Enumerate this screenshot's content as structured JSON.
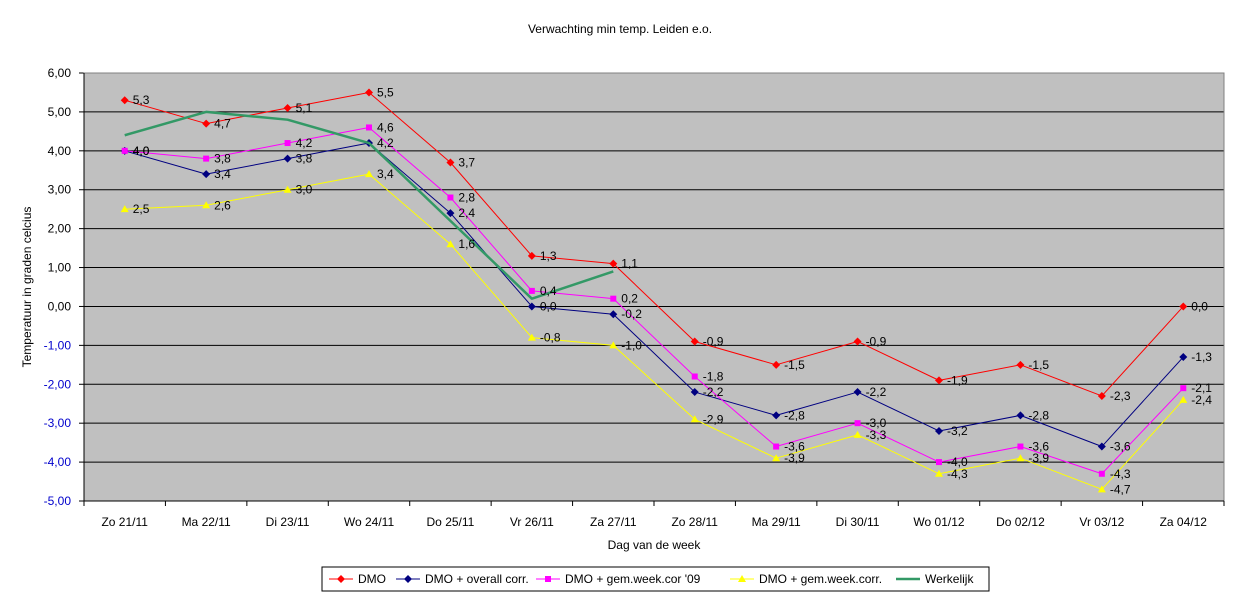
{
  "chart_data": {
    "type": "line",
    "title": "Verwachting min temp. Leiden e.o.",
    "xlabel": "Dag van de week",
    "ylabel": "Temperatuur in graden celcius",
    "ylim": [
      -5,
      6
    ],
    "yticks": [
      "6,00",
      "5,00",
      "4,00",
      "3,00",
      "2,00",
      "1,00",
      "0,00",
      "-1,00",
      "-2,00",
      "-3,00",
      "-4,00",
      "-5,00"
    ],
    "ytick_values": [
      6,
      5,
      4,
      3,
      2,
      1,
      0,
      -1,
      -2,
      -3,
      -4,
      -5
    ],
    "grid": true,
    "legend_position": "bottom",
    "categories": [
      "Zo 21/11",
      "Ma 22/11",
      "Di 23/11",
      "Wo 24/11",
      "Do 25/11",
      "Vr 26/11",
      "Za 27/11",
      "Zo 28/11",
      "Ma 29/11",
      "Di 30/11",
      "Wo 01/12",
      "Do 02/12",
      "Vr 03/12",
      "Za 04/12"
    ],
    "series": [
      {
        "name": "DMO",
        "color": "#ff0000",
        "marker": "diamond",
        "values": [
          5.3,
          4.7,
          5.1,
          5.5,
          3.7,
          1.3,
          1.1,
          -0.9,
          -1.5,
          -0.9,
          -1.9,
          -1.5,
          -2.3,
          0.0
        ],
        "labels": [
          "5,3",
          "4,7",
          "5,1",
          "5,5",
          "3,7",
          "1,3",
          "1,1",
          "-0,9",
          "-1,5",
          "-0,9",
          "-1,9",
          "-1,5",
          "-2,3",
          "0,0"
        ]
      },
      {
        "name": "DMO + overall corr.",
        "color": "#000080",
        "marker": "diamond",
        "values": [
          4.0,
          3.4,
          3.8,
          4.2,
          2.4,
          0.0,
          -0.2,
          -2.2,
          -2.8,
          -2.2,
          -3.2,
          -2.8,
          -3.6,
          -1.3
        ],
        "labels": [
          "4,0",
          "3,4",
          "3,8",
          "4,2",
          "2,4",
          "0,0",
          "-0,2",
          "-2,2",
          "-2,8",
          "-2,2",
          "-3,2",
          "-2,8",
          "-3,6",
          "-1,3"
        ]
      },
      {
        "name": "DMO + gem.week.cor '09",
        "color": "#ff00ff",
        "marker": "square",
        "values": [
          4.0,
          3.8,
          4.2,
          4.6,
          2.8,
          0.4,
          0.2,
          -1.8,
          -3.6,
          -3.0,
          -4.0,
          -3.6,
          -4.3,
          -2.1
        ],
        "labels": [
          "4,0",
          "3,8",
          "4,2",
          "4,6",
          "2,8",
          "0,4",
          "0,2",
          "-1,8",
          "-3,6",
          "-3,0",
          "-4,0",
          "-3,6",
          "-4,3",
          "-2,1"
        ]
      },
      {
        "name": "DMO + gem.week.corr.",
        "color": "#ffff00",
        "marker": "triangle",
        "values": [
          2.5,
          2.6,
          3.0,
          3.4,
          1.6,
          -0.8,
          -1.0,
          -2.9,
          -3.9,
          -3.3,
          -4.3,
          -3.9,
          -4.7,
          -2.4
        ],
        "labels": [
          "2,5",
          "2,6",
          "3,0",
          "3,4",
          "1,6",
          "-0,8",
          "-1,0",
          "-2,9",
          "-3,9",
          "-3,3",
          "-4,3",
          "-3,9",
          "-4,7",
          "-2,4"
        ]
      },
      {
        "name": "Werkelijk",
        "color": "#339966",
        "marker": "none",
        "values": [
          4.4,
          5.0,
          4.8,
          4.2,
          2.2,
          0.2,
          0.9,
          null,
          null,
          null,
          null,
          null,
          null,
          null
        ],
        "labels": []
      }
    ]
  }
}
